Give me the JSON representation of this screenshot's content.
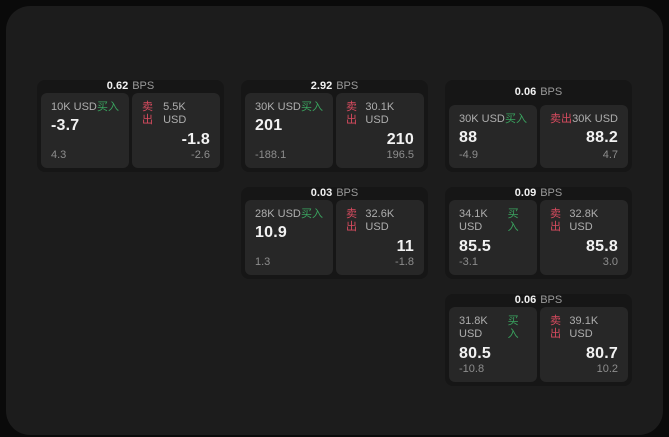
{
  "theme": {
    "page_bg": "#0a0a0a",
    "panel_bg": "#1c1c1c",
    "card_bg": "#161616",
    "cell_bg": "#272727",
    "text_primary": "#f2f2f2",
    "text_secondary": "#9a9a9a",
    "text_muted": "#8d8d8d",
    "buy_color": "#3aa45f",
    "sell_color": "#d84b5f"
  },
  "labels": {
    "bps_unit": "BPS",
    "buy": "买入",
    "sell": "卖出"
  },
  "cards": [
    {
      "bps": "0.62",
      "buy": {
        "amount": "10K USD",
        "value": "-3.7",
        "sub": "4.3"
      },
      "sell": {
        "amount": "5.5K USD",
        "value": "-1.8",
        "sub": "-2.6"
      }
    },
    {
      "bps": "2.92",
      "buy": {
        "amount": "30K USD",
        "value": "201",
        "sub": "-188.1"
      },
      "sell": {
        "amount": "30.1K USD",
        "value": "210",
        "sub": "196.5"
      }
    },
    {
      "bps": "0.06",
      "buy": {
        "amount": "30K USD",
        "value": "88",
        "sub": "-4.9"
      },
      "sell": {
        "amount": "30K USD",
        "value": "88.2",
        "sub": "4.7"
      }
    },
    {
      "bps": "0.03",
      "buy": {
        "amount": "28K USD",
        "value": "10.9",
        "sub": "1.3"
      },
      "sell": {
        "amount": "32.6K USD",
        "value": "11",
        "sub": "-1.8"
      }
    },
    {
      "bps": "0.09",
      "buy": {
        "amount": "34.1K USD",
        "value": "85.5",
        "sub": "-3.1"
      },
      "sell": {
        "amount": "32.8K USD",
        "value": "85.8",
        "sub": "3.0"
      }
    },
    {
      "bps": "0.06",
      "buy": {
        "amount": "31.8K USD",
        "value": "80.5",
        "sub": "-10.8"
      },
      "sell": {
        "amount": "39.1K USD",
        "value": "80.7",
        "sub": "10.2"
      }
    }
  ]
}
